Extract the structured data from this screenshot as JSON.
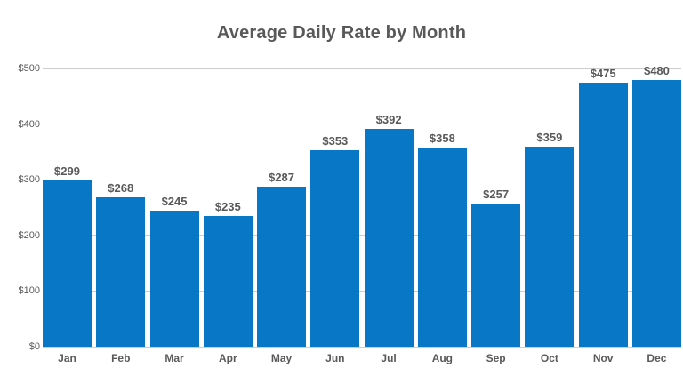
{
  "title": "Average Daily Rate by Month",
  "colors": {
    "bar": "#0877C5",
    "text": "#595959",
    "gridline": "#8c8c8c",
    "background": "#ffffff"
  },
  "chart_data": {
    "type": "bar",
    "title": "Average Daily Rate by Month",
    "xlabel": "",
    "ylabel": "",
    "categories": [
      "Jan",
      "Feb",
      "Mar",
      "Apr",
      "May",
      "Jun",
      "Jul",
      "Aug",
      "Sep",
      "Oct",
      "Nov",
      "Dec"
    ],
    "values": [
      299,
      268,
      245,
      235,
      287,
      353,
      392,
      358,
      257,
      359,
      475,
      480
    ],
    "value_labels": [
      "$299",
      "$268",
      "$245",
      "$235",
      "$287",
      "$353",
      "$392",
      "$358",
      "$257",
      "$359",
      "$475",
      "$480"
    ],
    "ylim": [
      0,
      500
    ],
    "yticks": [
      {
        "value": 0,
        "label": "$0"
      },
      {
        "value": 100,
        "label": "$100"
      },
      {
        "value": 200,
        "label": "$200"
      },
      {
        "value": 300,
        "label": "$300"
      },
      {
        "value": 400,
        "label": "$400"
      },
      {
        "value": 500,
        "label": "$500"
      }
    ],
    "grid": true,
    "legend": false,
    "bar_color": "#0877C5"
  }
}
